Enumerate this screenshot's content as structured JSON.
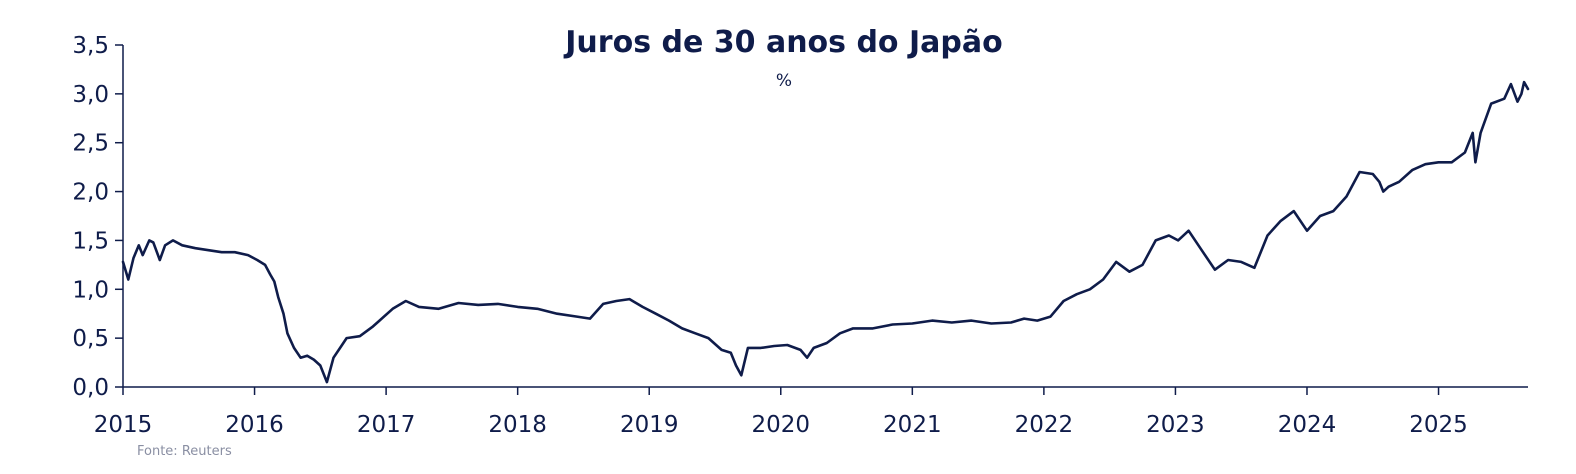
{
  "chart_data": {
    "type": "line",
    "title": "Juros de 30 anos do Japão",
    "subtitle": "%",
    "source": "Fonte: Reuters",
    "ylim": [
      0,
      3.5
    ],
    "yticks": [
      "0,0",
      "0,5",
      "1,0",
      "1,5",
      "2,0",
      "2,5",
      "3,0",
      "3,5"
    ],
    "xlim": [
      2015,
      2025.68
    ],
    "xticks": [
      "2015",
      "2016",
      "2017",
      "2018",
      "2019",
      "2020",
      "2021",
      "2022",
      "2023",
      "2024",
      "2025"
    ],
    "grid": false,
    "legend": "none",
    "line_color": "#0f1c4a",
    "series": [
      {
        "x": [
          2015.0,
          2015.04,
          2015.08,
          2015.12,
          2015.15,
          2015.2,
          2015.23,
          2015.28,
          2015.32,
          2015.38,
          2015.45,
          2015.55,
          2015.65,
          2015.75,
          2015.85,
          2015.95,
          2016.02,
          2016.08,
          2016.12,
          2016.15,
          2016.18,
          2016.22,
          2016.25,
          2016.3,
          2016.35,
          2016.4,
          2016.45,
          2016.5,
          2016.55,
          2016.6,
          2016.65,
          2016.7,
          2016.8,
          2016.9,
          2016.95,
          2017.05,
          2017.15,
          2017.25,
          2017.4,
          2017.55,
          2017.7,
          2017.85,
          2018.0,
          2018.15,
          2018.3,
          2018.45,
          2018.55,
          2018.65,
          2018.75,
          2018.85,
          2018.95,
          2019.05,
          2019.15,
          2019.25,
          2019.35,
          2019.45,
          2019.55,
          2019.62,
          2019.66,
          2019.7,
          2019.75,
          2019.85,
          2019.95,
          2020.05,
          2020.15,
          2020.2,
          2020.25,
          2020.35,
          2020.45,
          2020.55,
          2020.7,
          2020.85,
          2021.0,
          2021.15,
          2021.3,
          2021.45,
          2021.6,
          2021.75,
          2021.85,
          2021.95,
          2022.05,
          2022.15,
          2022.25,
          2022.35,
          2022.45,
          2022.55,
          2022.65,
          2022.75,
          2022.85,
          2022.95,
          2023.02,
          2023.1,
          2023.2,
          2023.3,
          2023.4,
          2023.5,
          2023.6,
          2023.7,
          2023.8,
          2023.9,
          2024.0,
          2024.1,
          2024.2,
          2024.3,
          2024.4,
          2024.5,
          2024.55,
          2024.58,
          2024.62,
          2024.7,
          2024.8,
          2024.9,
          2025.0,
          2025.1,
          2025.2,
          2025.26,
          2025.28,
          2025.32,
          2025.4,
          2025.5,
          2025.55,
          2025.6,
          2025.63,
          2025.65,
          2025.68
        ],
        "y": [
          1.28,
          1.1,
          1.32,
          1.45,
          1.35,
          1.5,
          1.48,
          1.3,
          1.45,
          1.5,
          1.45,
          1.42,
          1.4,
          1.38,
          1.38,
          1.35,
          1.3,
          1.25,
          1.15,
          1.08,
          0.92,
          0.75,
          0.55,
          0.4,
          0.3,
          0.32,
          0.28,
          0.22,
          0.05,
          0.3,
          0.4,
          0.5,
          0.52,
          0.62,
          0.68,
          0.8,
          0.88,
          0.82,
          0.8,
          0.86,
          0.84,
          0.85,
          0.82,
          0.8,
          0.75,
          0.72,
          0.7,
          0.85,
          0.88,
          0.9,
          0.82,
          0.75,
          0.68,
          0.6,
          0.55,
          0.5,
          0.38,
          0.35,
          0.22,
          0.12,
          0.4,
          0.4,
          0.42,
          0.43,
          0.38,
          0.3,
          0.4,
          0.45,
          0.55,
          0.6,
          0.6,
          0.64,
          0.65,
          0.68,
          0.66,
          0.68,
          0.65,
          0.66,
          0.7,
          0.68,
          0.72,
          0.88,
          0.95,
          1.0,
          1.1,
          1.28,
          1.18,
          1.25,
          1.5,
          1.55,
          1.5,
          1.6,
          1.4,
          1.2,
          1.3,
          1.28,
          1.22,
          1.55,
          1.7,
          1.8,
          1.6,
          1.75,
          1.8,
          1.95,
          2.2,
          2.18,
          2.1,
          2.0,
          2.05,
          2.1,
          2.22,
          2.28,
          2.3,
          2.3,
          2.4,
          2.6,
          2.3,
          2.6,
          2.9,
          2.95,
          3.1,
          2.92,
          3.0,
          3.12,
          3.05
        ]
      }
    ]
  }
}
